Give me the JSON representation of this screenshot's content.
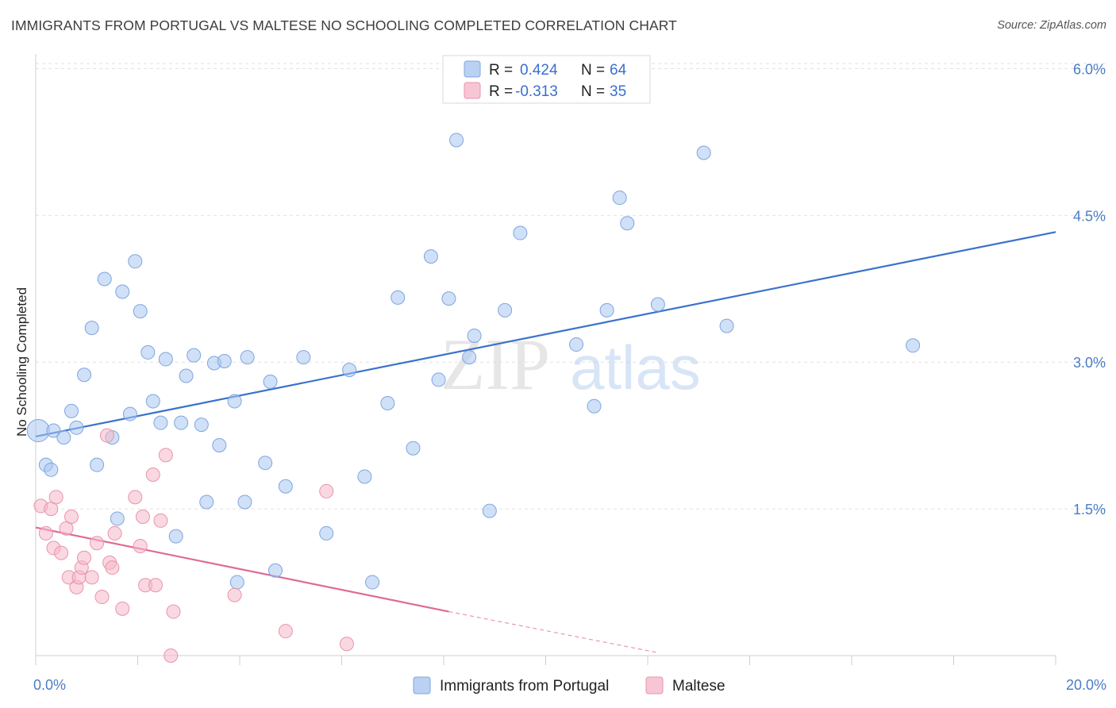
{
  "title": "IMMIGRANTS FROM PORTUGAL VS MALTESE NO SCHOOLING COMPLETED CORRELATION CHART",
  "source": "Source: ZipAtlas.com",
  "watermark": {
    "zip": "ZIP",
    "atlas": "atlas"
  },
  "legend": {
    "rows": [
      {
        "r_label": "R =",
        "r_value": "0.424",
        "n_label": "N =",
        "n_value": "64",
        "color": "#a9c6f0"
      },
      {
        "r_label": "R =",
        "r_value": "-0.313",
        "n_label": "N =",
        "n_value": "35",
        "color": "#f5b8c9"
      }
    ]
  },
  "bottom_legend": [
    {
      "label": "Immigrants from Portugal",
      "color": "#a9c6f0"
    },
    {
      "label": "Maltese",
      "color": "#f5b8c9"
    }
  ],
  "chart_data": {
    "type": "scatter",
    "title": "IMMIGRANTS FROM PORTUGAL VS MALTESE NO SCHOOLING COMPLETED CORRELATION CHART",
    "xlabel": "",
    "ylabel": "No Schooling Completed",
    "xlim": [
      0,
      20
    ],
    "ylim": [
      0,
      6.15
    ],
    "x_tick_labels": [
      {
        "value": 0,
        "label": "0.0%"
      },
      {
        "value": 20,
        "label": "20.0%"
      }
    ],
    "y_tick_labels": [
      {
        "value": 1.5,
        "label": "1.5%"
      },
      {
        "value": 3.0,
        "label": "3.0%"
      },
      {
        "value": 4.5,
        "label": "4.5%"
      },
      {
        "value": 6.0,
        "label": "6.0%"
      }
    ],
    "grid": true,
    "series": [
      {
        "name": "Immigrants from Portugal",
        "color": "#a9c6f0",
        "stroke": "#7da6e0",
        "trend": {
          "x": [
            0,
            20
          ],
          "y": [
            2.24,
            4.33
          ],
          "color": "#3a72cc"
        },
        "points": [
          [
            0.05,
            2.3,
            "big"
          ],
          [
            0.2,
            1.95
          ],
          [
            0.3,
            1.9
          ],
          [
            0.35,
            2.3
          ],
          [
            0.55,
            2.23
          ],
          [
            0.7,
            2.5
          ],
          [
            0.8,
            2.33
          ],
          [
            0.95,
            2.87
          ],
          [
            1.1,
            3.35
          ],
          [
            1.2,
            1.95
          ],
          [
            1.35,
            3.85
          ],
          [
            1.5,
            2.23
          ],
          [
            1.6,
            1.4
          ],
          [
            1.7,
            3.72
          ],
          [
            1.85,
            2.47
          ],
          [
            1.95,
            4.03
          ],
          [
            2.05,
            3.52
          ],
          [
            2.2,
            3.1
          ],
          [
            2.3,
            2.6
          ],
          [
            2.45,
            2.38
          ],
          [
            2.55,
            3.03
          ],
          [
            2.75,
            1.22
          ],
          [
            2.85,
            2.38
          ],
          [
            2.95,
            2.86
          ],
          [
            3.1,
            3.07
          ],
          [
            3.25,
            2.36
          ],
          [
            3.35,
            1.57
          ],
          [
            3.5,
            2.99
          ],
          [
            3.6,
            2.15
          ],
          [
            3.7,
            3.01
          ],
          [
            3.9,
            2.6
          ],
          [
            3.95,
            0.75
          ],
          [
            4.1,
            1.57
          ],
          [
            4.15,
            3.05
          ],
          [
            4.5,
            1.97
          ],
          [
            4.6,
            2.8
          ],
          [
            4.7,
            0.87
          ],
          [
            4.9,
            1.73
          ],
          [
            5.25,
            3.05
          ],
          [
            5.7,
            1.25
          ],
          [
            6.15,
            2.92
          ],
          [
            6.45,
            1.83
          ],
          [
            6.6,
            0.75
          ],
          [
            6.9,
            2.58
          ],
          [
            7.1,
            3.66
          ],
          [
            7.4,
            2.12
          ],
          [
            7.75,
            4.08
          ],
          [
            7.9,
            2.82
          ],
          [
            8.1,
            3.65
          ],
          [
            8.25,
            5.27
          ],
          [
            8.5,
            3.05
          ],
          [
            8.6,
            3.27
          ],
          [
            8.9,
            1.48
          ],
          [
            9.2,
            3.53
          ],
          [
            9.5,
            4.32
          ],
          [
            10.6,
            3.18
          ],
          [
            10.95,
            2.55
          ],
          [
            11.2,
            3.53
          ],
          [
            11.45,
            4.68
          ],
          [
            11.6,
            4.42
          ],
          [
            12.2,
            3.59
          ],
          [
            13.1,
            5.14
          ],
          [
            13.55,
            3.37
          ],
          [
            17.2,
            3.17
          ]
        ]
      },
      {
        "name": "Maltese",
        "color": "#f5b8c9",
        "stroke": "#e893ad",
        "trend": {
          "x": [
            0,
            8.1
          ],
          "y": [
            1.31,
            0.45
          ],
          "color": "#e06a95",
          "dashed_to": [
            12.2,
            0.03
          ]
        },
        "points": [
          [
            0.1,
            1.53
          ],
          [
            0.2,
            1.25
          ],
          [
            0.3,
            1.5
          ],
          [
            0.35,
            1.1
          ],
          [
            0.4,
            1.62
          ],
          [
            0.5,
            1.05
          ],
          [
            0.6,
            1.3
          ],
          [
            0.65,
            0.8
          ],
          [
            0.7,
            1.42
          ],
          [
            0.8,
            0.7
          ],
          [
            0.85,
            0.8
          ],
          [
            0.9,
            0.9
          ],
          [
            0.95,
            1.0
          ],
          [
            1.1,
            0.8
          ],
          [
            1.2,
            1.15
          ],
          [
            1.3,
            0.6
          ],
          [
            1.4,
            2.25
          ],
          [
            1.45,
            0.95
          ],
          [
            1.5,
            0.9
          ],
          [
            1.55,
            1.25
          ],
          [
            1.7,
            0.48
          ],
          [
            1.95,
            1.62
          ],
          [
            2.05,
            1.12
          ],
          [
            2.1,
            1.42
          ],
          [
            2.15,
            0.72
          ],
          [
            2.3,
            1.85
          ],
          [
            2.35,
            0.72
          ],
          [
            2.45,
            1.38
          ],
          [
            2.55,
            2.05
          ],
          [
            2.7,
            0.45
          ],
          [
            3.9,
            0.62
          ],
          [
            4.9,
            0.25
          ],
          [
            5.7,
            1.68
          ],
          [
            6.1,
            0.12
          ],
          [
            2.65,
            0.0
          ]
        ]
      }
    ]
  }
}
